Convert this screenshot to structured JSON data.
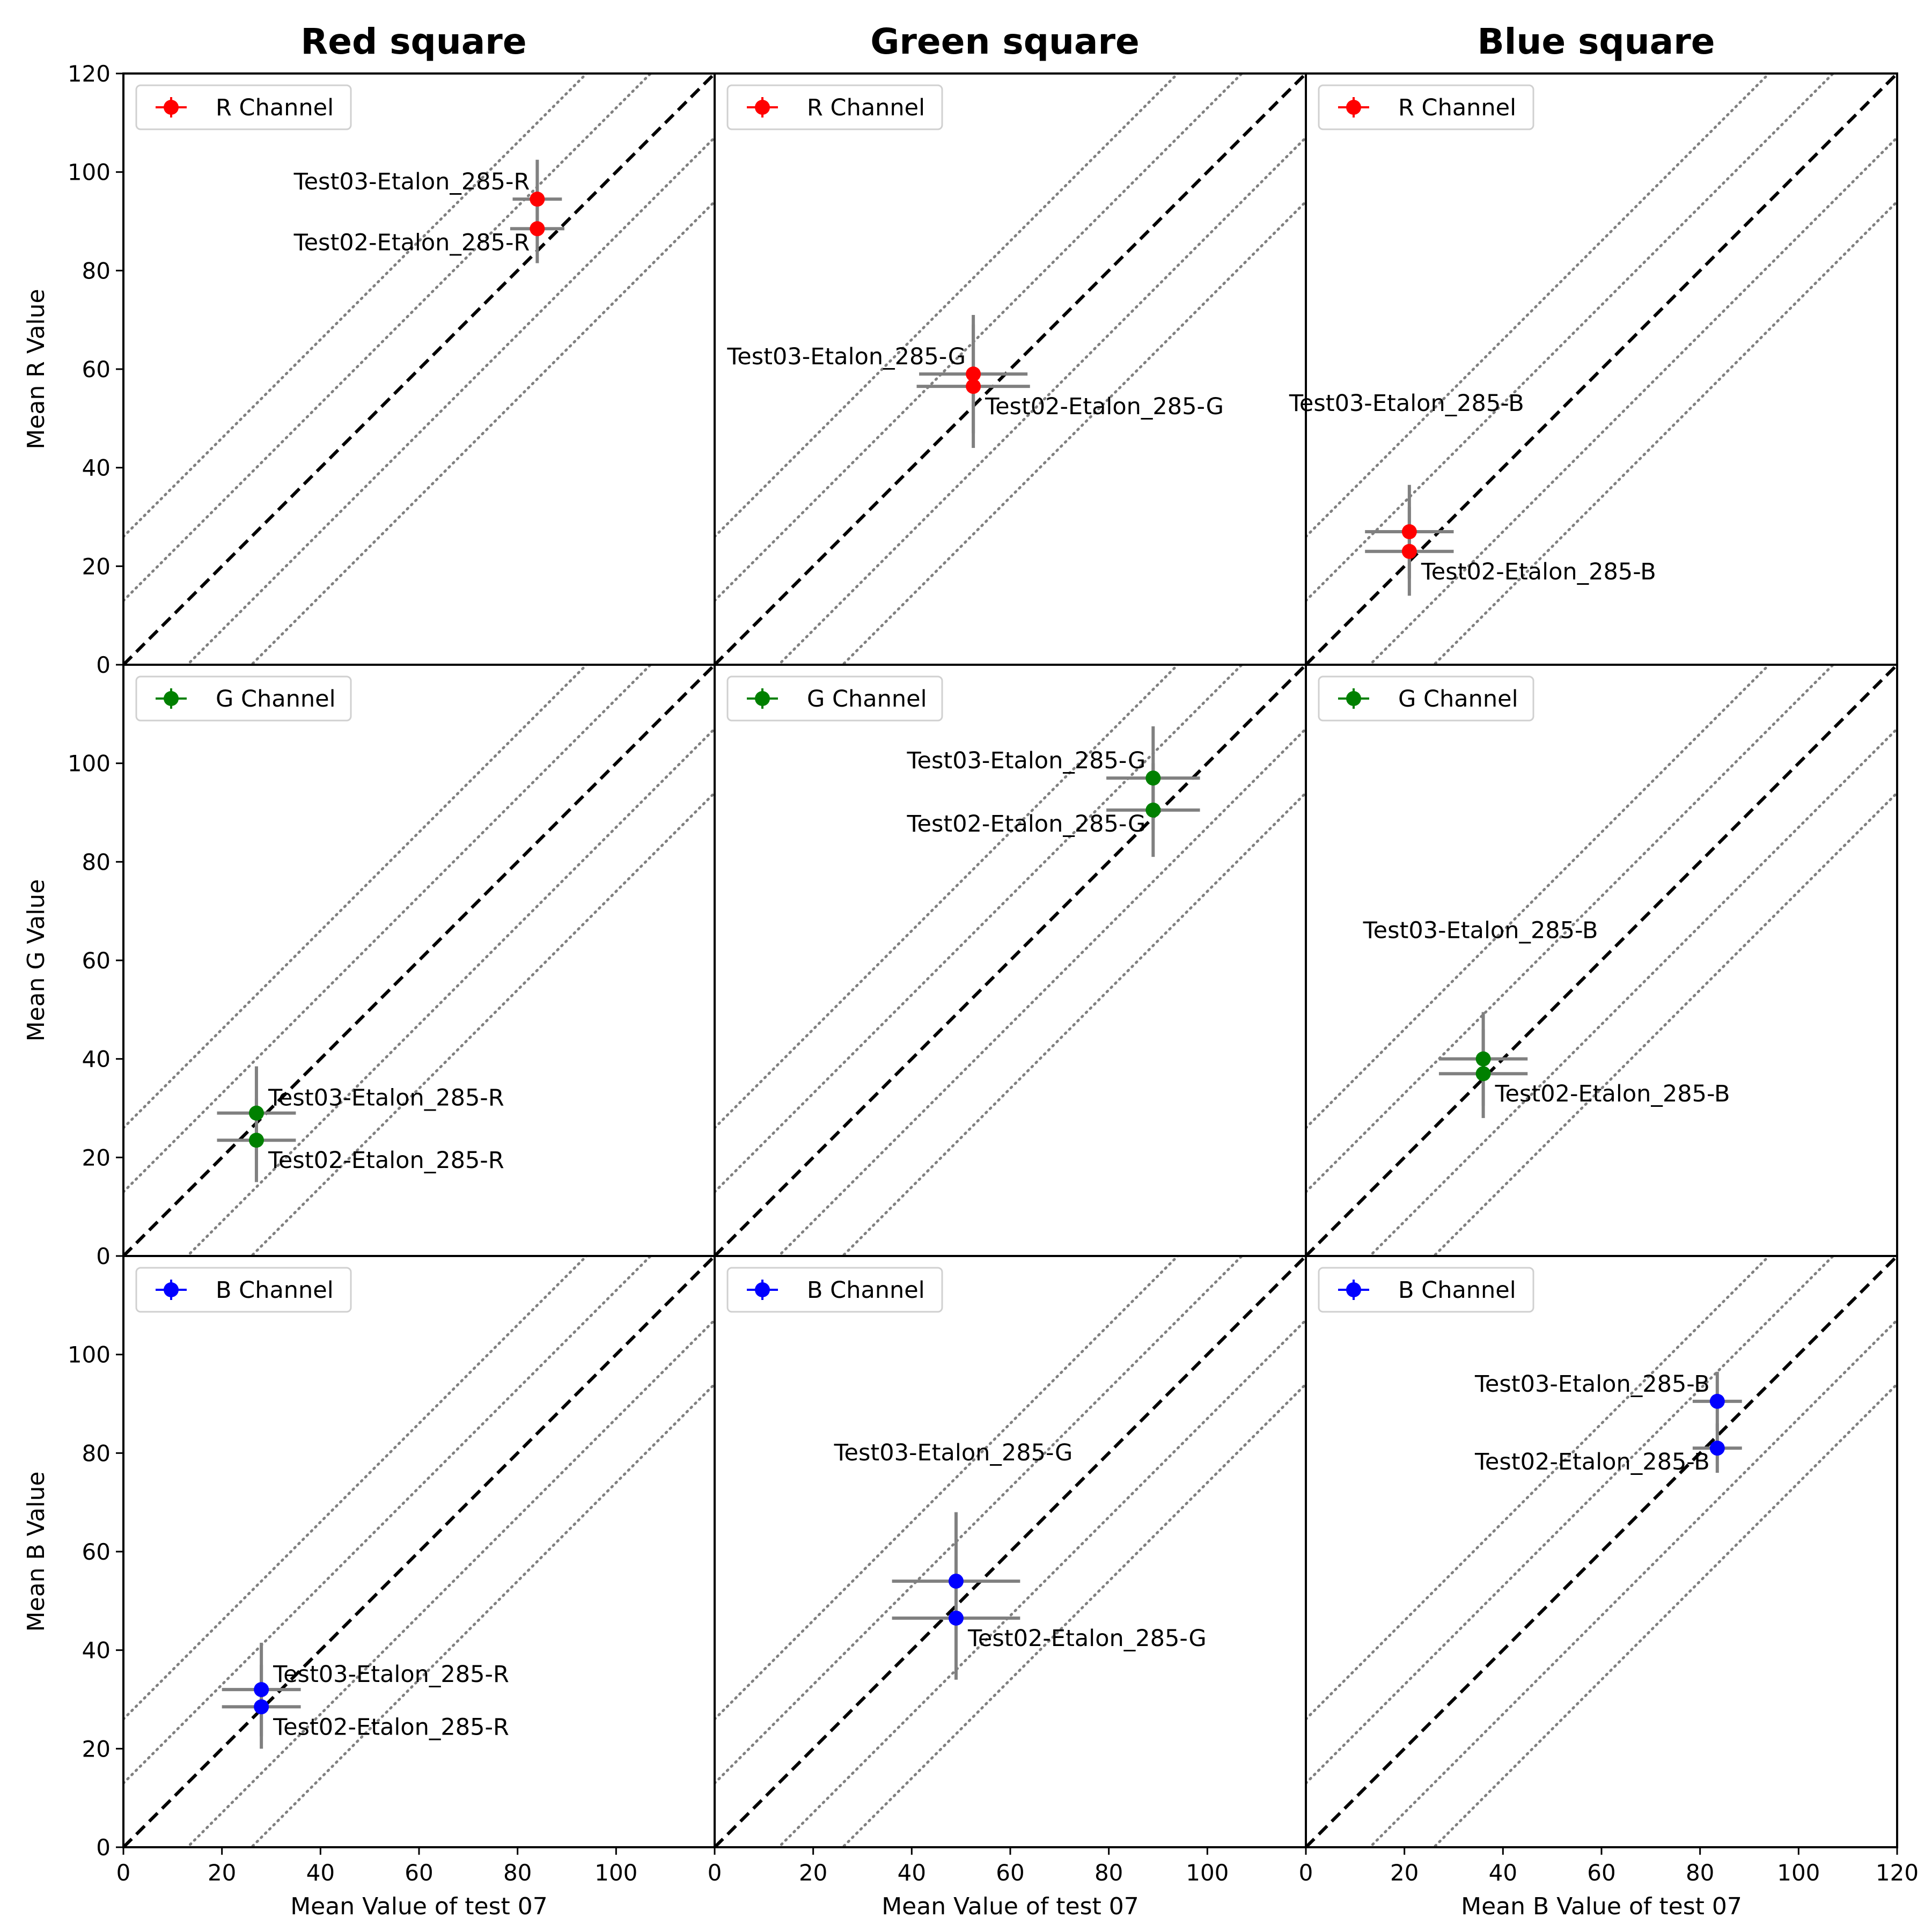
{
  "chart_data": {
    "type": "scatter",
    "x_range": [
      0,
      120
    ],
    "y_range": [
      0,
      120
    ],
    "x_ticks": [
      0,
      20,
      40,
      60,
      80,
      100
    ],
    "x_ticks_last_col": [
      0,
      20,
      40,
      60,
      80,
      100,
      120
    ],
    "y_ticks": [
      0,
      20,
      40,
      60,
      80,
      100,
      120
    ],
    "y_ticks_lower_rows": [
      0,
      20,
      40,
      60,
      80,
      100
    ],
    "reference_lines": {
      "identity": "y = x (dashed)",
      "offsets": [
        -26,
        -13,
        13,
        26
      ]
    },
    "columns": [
      {
        "title": "Red square",
        "xlabel": "Mean Value of test 07"
      },
      {
        "title": "Green square",
        "xlabel": "Mean Value of test 07"
      },
      {
        "title": "Blue square",
        "xlabel": "Mean B Value of test 07"
      }
    ],
    "rows": [
      {
        "ylabel": "Mean R Value",
        "legend": "R Channel",
        "color": "#ff0000"
      },
      {
        "ylabel": "Mean G Value",
        "legend": "G Channel",
        "color": "#008000"
      },
      {
        "ylabel": "Mean B Value",
        "legend": "B Channel",
        "color": "#0000ff"
      }
    ],
    "panels": [
      {
        "row": 0,
        "col": 0,
        "points": [
          {
            "label": "Test03-Etalon_285-R",
            "x": 84,
            "y": 94.5,
            "xerr": 5,
            "yerr": 8,
            "label_pos": "left"
          },
          {
            "label": "Test02-Etalon_285-R",
            "x": 84,
            "y": 88.5,
            "xerr": 5.5,
            "yerr": 7,
            "label_pos": "left"
          }
        ]
      },
      {
        "row": 0,
        "col": 1,
        "points": [
          {
            "label": "Test03-Etalon_285-G",
            "x": 52.5,
            "y": 59,
            "xerr": 11,
            "yerr": 12,
            "label_pos": "left"
          },
          {
            "label": "Test02-Etalon_285-G",
            "x": 52.5,
            "y": 56.5,
            "xerr": 11.5,
            "yerr": 12.5,
            "label_pos": "right"
          }
        ]
      },
      {
        "row": 0,
        "col": 2,
        "points": [
          {
            "label": "Test03-Etalon_285-B",
            "x": 21,
            "y": 27,
            "xerr": 9,
            "yerr": 9.5,
            "label_pos": "upper"
          },
          {
            "label": "Test02-Etalon_285-B",
            "x": 21,
            "y": 23,
            "xerr": 9,
            "yerr": 9,
            "label_pos": "right"
          }
        ]
      },
      {
        "row": 1,
        "col": 0,
        "points": [
          {
            "label": "Test03-Etalon_285-R",
            "x": 27,
            "y": 29,
            "xerr": 8,
            "yerr": 9.5,
            "label_pos": "right"
          },
          {
            "label": "Test02-Etalon_285-R",
            "x": 27,
            "y": 23.5,
            "xerr": 8,
            "yerr": 8.5,
            "label_pos": "right"
          }
        ]
      },
      {
        "row": 1,
        "col": 1,
        "points": [
          {
            "label": "Test03-Etalon_285-G",
            "x": 89,
            "y": 97,
            "xerr": 9.5,
            "yerr": 10.5,
            "label_pos": "left"
          },
          {
            "label": "Test02-Etalon_285-G",
            "x": 89,
            "y": 90.5,
            "xerr": 9.5,
            "yerr": 9.5,
            "label_pos": "left"
          }
        ]
      },
      {
        "row": 1,
        "col": 2,
        "points": [
          {
            "label": "Test03-Etalon_285-B",
            "x": 36,
            "y": 40,
            "xerr": 9,
            "yerr": 9.5,
            "label_pos": "upper"
          },
          {
            "label": "Test02-Etalon_285-B",
            "x": 36,
            "y": 37,
            "xerr": 9,
            "yerr": 9,
            "label_pos": "right"
          }
        ]
      },
      {
        "row": 2,
        "col": 0,
        "points": [
          {
            "label": "Test03-Etalon_285-R",
            "x": 28,
            "y": 32,
            "xerr": 8,
            "yerr": 9.5,
            "label_pos": "right"
          },
          {
            "label": "Test02-Etalon_285-R",
            "x": 28,
            "y": 28.5,
            "xerr": 8,
            "yerr": 8.5,
            "label_pos": "right"
          }
        ]
      },
      {
        "row": 2,
        "col": 1,
        "points": [
          {
            "label": "Test03-Etalon_285-G",
            "x": 49,
            "y": 54,
            "xerr": 13,
            "yerr": 14,
            "label_pos": "upper"
          },
          {
            "label": "Test02-Etalon_285-G",
            "x": 49,
            "y": 46.5,
            "xerr": 13,
            "yerr": 12.5,
            "label_pos": "right"
          }
        ]
      },
      {
        "row": 2,
        "col": 2,
        "points": [
          {
            "label": "Test03-Etalon_285-B",
            "x": 83.5,
            "y": 90.5,
            "xerr": 5,
            "yerr": 6,
            "label_pos": "left"
          },
          {
            "label": "Test02-Etalon_285-B",
            "x": 83.5,
            "y": 81,
            "xerr": 5,
            "yerr": 5,
            "label_pos": "left"
          }
        ]
      }
    ]
  }
}
